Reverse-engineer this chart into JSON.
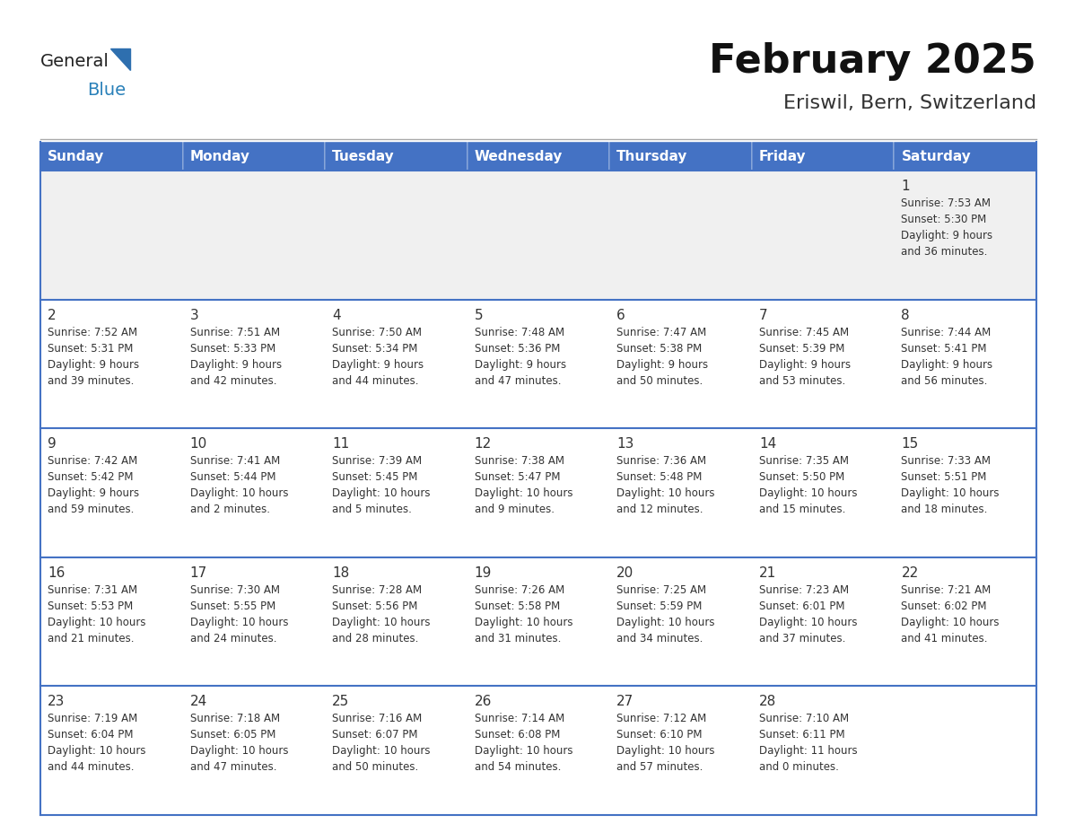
{
  "title": "February 2025",
  "subtitle": "Eriswil, Bern, Switzerland",
  "header_bg": "#4472C4",
  "header_text_color": "#FFFFFF",
  "cell_bg_white": "#FFFFFF",
  "cell_bg_light": "#F0F0F0",
  "row_border_color": "#4472C4",
  "cell_border_color": "#CCCCCC",
  "text_color": "#333333",
  "days_of_week": [
    "Sunday",
    "Monday",
    "Tuesday",
    "Wednesday",
    "Thursday",
    "Friday",
    "Saturday"
  ],
  "calendar_data": [
    [
      {
        "day": "",
        "info": ""
      },
      {
        "day": "",
        "info": ""
      },
      {
        "day": "",
        "info": ""
      },
      {
        "day": "",
        "info": ""
      },
      {
        "day": "",
        "info": ""
      },
      {
        "day": "",
        "info": ""
      },
      {
        "day": "1",
        "info": "Sunrise: 7:53 AM\nSunset: 5:30 PM\nDaylight: 9 hours\nand 36 minutes."
      }
    ],
    [
      {
        "day": "2",
        "info": "Sunrise: 7:52 AM\nSunset: 5:31 PM\nDaylight: 9 hours\nand 39 minutes."
      },
      {
        "day": "3",
        "info": "Sunrise: 7:51 AM\nSunset: 5:33 PM\nDaylight: 9 hours\nand 42 minutes."
      },
      {
        "day": "4",
        "info": "Sunrise: 7:50 AM\nSunset: 5:34 PM\nDaylight: 9 hours\nand 44 minutes."
      },
      {
        "day": "5",
        "info": "Sunrise: 7:48 AM\nSunset: 5:36 PM\nDaylight: 9 hours\nand 47 minutes."
      },
      {
        "day": "6",
        "info": "Sunrise: 7:47 AM\nSunset: 5:38 PM\nDaylight: 9 hours\nand 50 minutes."
      },
      {
        "day": "7",
        "info": "Sunrise: 7:45 AM\nSunset: 5:39 PM\nDaylight: 9 hours\nand 53 minutes."
      },
      {
        "day": "8",
        "info": "Sunrise: 7:44 AM\nSunset: 5:41 PM\nDaylight: 9 hours\nand 56 minutes."
      }
    ],
    [
      {
        "day": "9",
        "info": "Sunrise: 7:42 AM\nSunset: 5:42 PM\nDaylight: 9 hours\nand 59 minutes."
      },
      {
        "day": "10",
        "info": "Sunrise: 7:41 AM\nSunset: 5:44 PM\nDaylight: 10 hours\nand 2 minutes."
      },
      {
        "day": "11",
        "info": "Sunrise: 7:39 AM\nSunset: 5:45 PM\nDaylight: 10 hours\nand 5 minutes."
      },
      {
        "day": "12",
        "info": "Sunrise: 7:38 AM\nSunset: 5:47 PM\nDaylight: 10 hours\nand 9 minutes."
      },
      {
        "day": "13",
        "info": "Sunrise: 7:36 AM\nSunset: 5:48 PM\nDaylight: 10 hours\nand 12 minutes."
      },
      {
        "day": "14",
        "info": "Sunrise: 7:35 AM\nSunset: 5:50 PM\nDaylight: 10 hours\nand 15 minutes."
      },
      {
        "day": "15",
        "info": "Sunrise: 7:33 AM\nSunset: 5:51 PM\nDaylight: 10 hours\nand 18 minutes."
      }
    ],
    [
      {
        "day": "16",
        "info": "Sunrise: 7:31 AM\nSunset: 5:53 PM\nDaylight: 10 hours\nand 21 minutes."
      },
      {
        "day": "17",
        "info": "Sunrise: 7:30 AM\nSunset: 5:55 PM\nDaylight: 10 hours\nand 24 minutes."
      },
      {
        "day": "18",
        "info": "Sunrise: 7:28 AM\nSunset: 5:56 PM\nDaylight: 10 hours\nand 28 minutes."
      },
      {
        "day": "19",
        "info": "Sunrise: 7:26 AM\nSunset: 5:58 PM\nDaylight: 10 hours\nand 31 minutes."
      },
      {
        "day": "20",
        "info": "Sunrise: 7:25 AM\nSunset: 5:59 PM\nDaylight: 10 hours\nand 34 minutes."
      },
      {
        "day": "21",
        "info": "Sunrise: 7:23 AM\nSunset: 6:01 PM\nDaylight: 10 hours\nand 37 minutes."
      },
      {
        "day": "22",
        "info": "Sunrise: 7:21 AM\nSunset: 6:02 PM\nDaylight: 10 hours\nand 41 minutes."
      }
    ],
    [
      {
        "day": "23",
        "info": "Sunrise: 7:19 AM\nSunset: 6:04 PM\nDaylight: 10 hours\nand 44 minutes."
      },
      {
        "day": "24",
        "info": "Sunrise: 7:18 AM\nSunset: 6:05 PM\nDaylight: 10 hours\nand 47 minutes."
      },
      {
        "day": "25",
        "info": "Sunrise: 7:16 AM\nSunset: 6:07 PM\nDaylight: 10 hours\nand 50 minutes."
      },
      {
        "day": "26",
        "info": "Sunrise: 7:14 AM\nSunset: 6:08 PM\nDaylight: 10 hours\nand 54 minutes."
      },
      {
        "day": "27",
        "info": "Sunrise: 7:12 AM\nSunset: 6:10 PM\nDaylight: 10 hours\nand 57 minutes."
      },
      {
        "day": "28",
        "info": "Sunrise: 7:10 AM\nSunset: 6:11 PM\nDaylight: 11 hours\nand 0 minutes."
      },
      {
        "day": "",
        "info": ""
      }
    ]
  ],
  "logo_general_color": "#222222",
  "logo_blue_color": "#2980b9",
  "logo_triangle_color": "#2e6faf",
  "title_fontsize": 32,
  "subtitle_fontsize": 16,
  "header_fontsize": 11,
  "day_num_fontsize": 11,
  "info_fontsize": 8.5
}
